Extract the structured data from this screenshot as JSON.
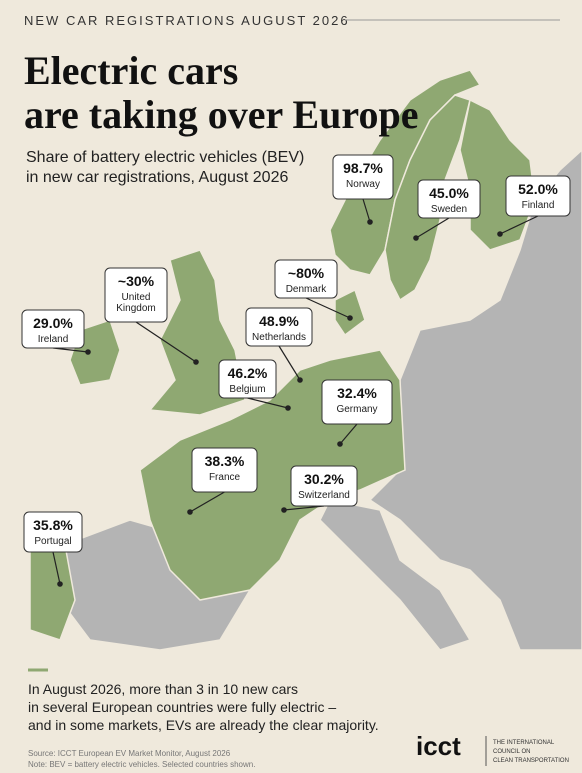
{
  "header": {
    "kicker": "NEW CAR REGISTRATIONS AUGUST 2026",
    "title_lines": [
      "Electric cars",
      "are taking over Europe"
    ],
    "subtitle_lines": [
      "Share of battery electric vehicles (BEV)",
      "in new car registrations, August 2026"
    ]
  },
  "countries": [
    {
      "value": "98.7%",
      "name": "Norway"
    },
    {
      "value": "45.0%",
      "name": "Sweden"
    },
    {
      "value": "52.0%",
      "name": "Finland"
    },
    {
      "value": "~30%",
      "name": "United Kingdom"
    },
    {
      "value": "~80%",
      "name": "Denmark"
    },
    {
      "value": "29.0%",
      "name": "Ireland"
    },
    {
      "value": "48.9%",
      "name": "Netherlands"
    },
    {
      "value": "46.2%",
      "name": "Belgium"
    },
    {
      "value": "32.4%",
      "name": "Germany"
    },
    {
      "value": "38.3%",
      "name": "France"
    },
    {
      "value": "30.2%",
      "name": "Switzerland"
    },
    {
      "value": "35.8%",
      "name": "Portugal"
    }
  ],
  "footer": {
    "summary_lines": [
      "In August 2026, more than 3 in 10 new cars",
      "in several European countries were fully electric –",
      "and in some markets, EVs are already the clear majority."
    ],
    "source": "Source: ICCT European EV Market Monitor, August 2026",
    "note": "Note: BEV = battery electric vehicles. Selected countries shown.",
    "logo": "icct",
    "org_lines": [
      "THE INTERNATIONAL",
      "COUNCIL ON",
      "CLEAN TRANSPORTATION"
    ]
  }
}
